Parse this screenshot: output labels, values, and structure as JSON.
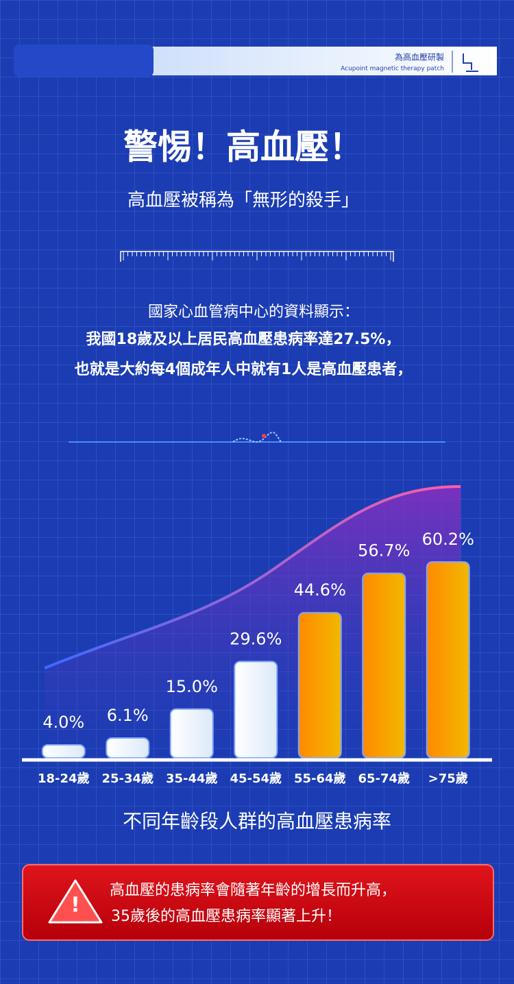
{
  "header": {
    "tag": "為高血壓研製",
    "tag_en": "Acupoint magnetic therapy patch"
  },
  "title": "警惕！高血壓！",
  "subtitle": "高血壓被稱為「無形的殺手」",
  "intro": {
    "lines": [
      "國家心血管病中心的資料顯示：",
      "我國18歲及以上居民高血壓患病率達27.5%，",
      "也就是大約每4個成年人中就有1人是高血壓患者，"
    ]
  },
  "chart_data": {
    "type": "bar",
    "title": "不同年齡段人群的高血壓患病率",
    "categories": [
      "18-24歲",
      "25-34歲",
      "35-44歲",
      "45-54歲",
      "55-64歲",
      "65-74歲",
      ">75歲"
    ],
    "values": [
      4.0,
      6.1,
      15.0,
      29.6,
      44.6,
      56.7,
      60.2
    ],
    "value_labels": [
      "4.0%",
      "6.1%",
      "15.0%",
      "29.6%",
      "44.6%",
      "56.7%",
      "60.2%"
    ],
    "colors": [
      "#dce9f8",
      "#dce9f8",
      "#dce9f8",
      "#dce9f8",
      "#f5a400",
      "#f5a400",
      "#f5a400"
    ]
  },
  "warning": {
    "lines": [
      "高血壓的患病率會隨著年齡的增長而升高，",
      "35歲後的高血壓患病率顯著上升！"
    ]
  }
}
